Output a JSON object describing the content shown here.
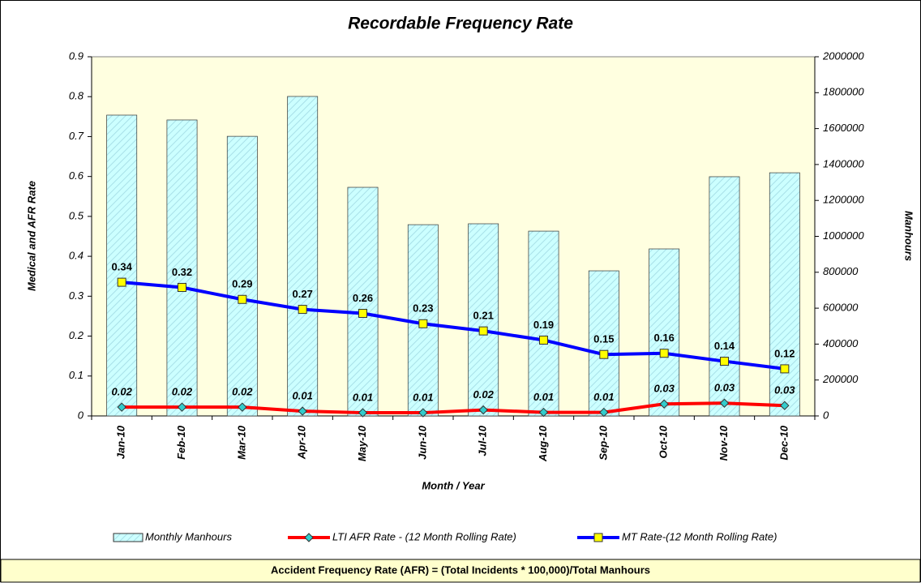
{
  "chart_data": {
    "type": "bar",
    "title": "Recordable Frequency Rate",
    "x_label": "Month / Year",
    "y_label": "Medical and AFR Rate",
    "y2_label": "Manhours",
    "footnote": "Accident Frequency Rate (AFR) = (Total Incidents * 100,000)/Total Manhours",
    "categories": [
      "Jan-10",
      "Feb-10",
      "Mar-10",
      "Apr-10",
      "May-10",
      "Jun-10",
      "Jul-10",
      "Aug-10",
      "Sep-10",
      "Oct-10",
      "Nov-10",
      "Dec-10"
    ],
    "ylim": [
      0,
      0.9
    ],
    "yticks": [
      0,
      0.1,
      0.2,
      0.3,
      0.4,
      0.5,
      0.6,
      0.7,
      0.8,
      0.9
    ],
    "y2lim": [
      0,
      2000000
    ],
    "y2ticks": [
      0,
      200000,
      400000,
      600000,
      800000,
      1000000,
      1200000,
      1400000,
      1600000,
      1800000,
      2000000
    ],
    "legend": "bottom",
    "series": [
      {
        "name": "Monthly Manhours",
        "type": "bar",
        "axis": "y2",
        "color": "#ccffff",
        "values": [
          1675000,
          1648000,
          1557000,
          1779000,
          1273000,
          1065000,
          1070000,
          1029000,
          808000,
          930000,
          1332000,
          1354000
        ]
      },
      {
        "name": "LTI AFR Rate - (12 Month Rolling Rate)",
        "type": "line",
        "color": "#ff0000",
        "marker_color": "#33cccc",
        "values": [
          0.022,
          0.022,
          0.022,
          0.012,
          0.008,
          0.008,
          0.015,
          0.009,
          0.009,
          0.03,
          0.032,
          0.026
        ],
        "value_labels": [
          "0.02",
          "0.02",
          "0.02",
          "0.01",
          "0.01",
          "0.01",
          "0.02",
          "0.01",
          "0.01",
          "0.03",
          "0.03",
          "0.03"
        ]
      },
      {
        "name": "MT Rate-(12 Month Rolling Rate)",
        "type": "line",
        "color": "#0000ff",
        "marker_color": "#ffff00",
        "values": [
          0.335,
          0.322,
          0.292,
          0.267,
          0.257,
          0.231,
          0.213,
          0.19,
          0.154,
          0.157,
          0.137,
          0.118
        ],
        "value_labels": [
          "0.34",
          "0.32",
          "0.29",
          "0.27",
          "0.26",
          "0.23",
          "0.21",
          "0.19",
          "0.15",
          "0.16",
          "0.14",
          "0.12"
        ]
      }
    ]
  }
}
